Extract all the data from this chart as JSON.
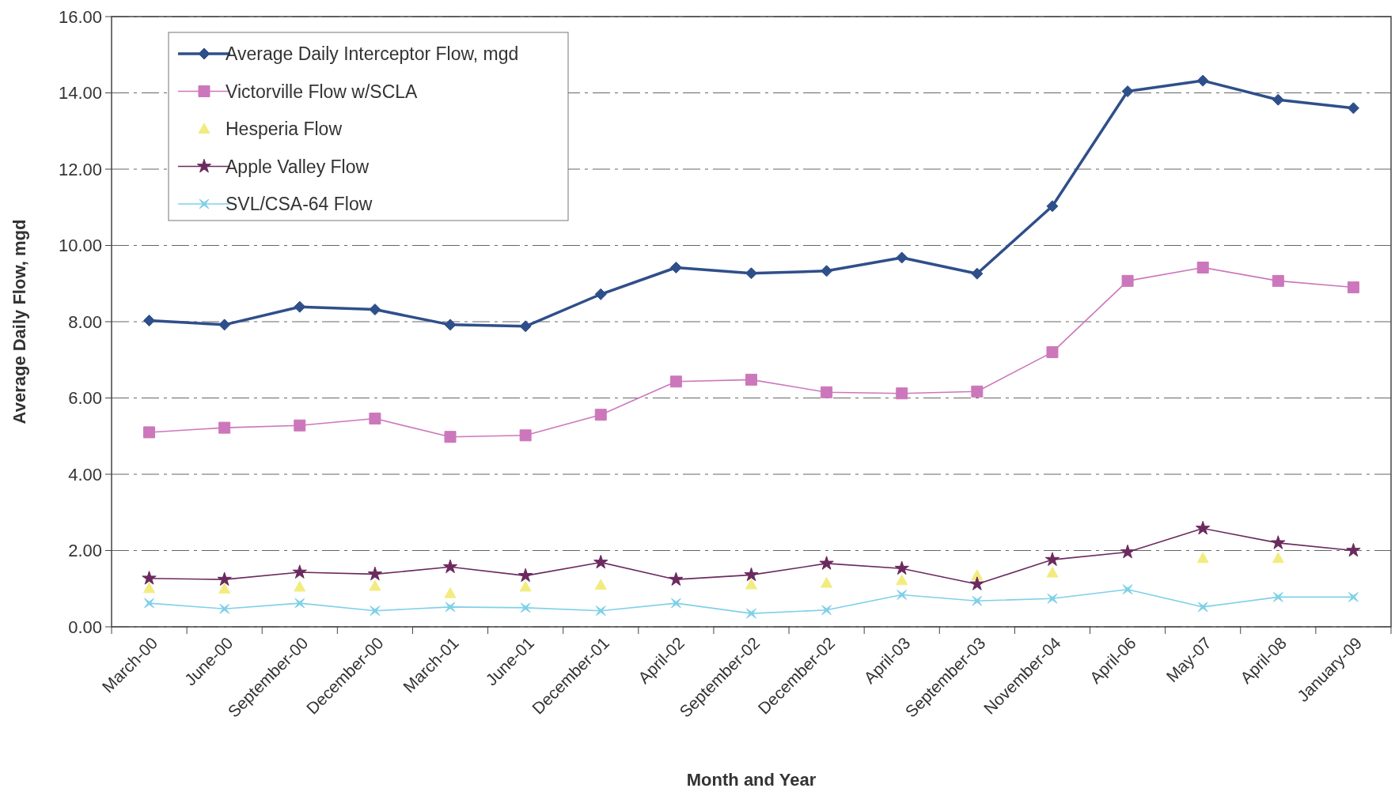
{
  "chart_data": {
    "type": "line",
    "xlabel": "Month and Year",
    "ylabel": "Average Daily Flow, mgd",
    "categories": [
      "March-00",
      "June-00",
      "September-00",
      "December-00",
      "March-01",
      "June-01",
      "December-01",
      "April-02",
      "September-02",
      "December-02",
      "April-03",
      "September-03",
      "November-04",
      "April-06",
      "May-07",
      "April-08",
      "January-09"
    ],
    "ylim": [
      0,
      16
    ],
    "yticks": [
      {
        "value": 0,
        "label": "0.00"
      },
      {
        "value": 2,
        "label": "2.00"
      },
      {
        "value": 4,
        "label": "4.00"
      },
      {
        "value": 6,
        "label": "6.00"
      },
      {
        "value": 8,
        "label": "8.00"
      },
      {
        "value": 10,
        "label": "10.00"
      },
      {
        "value": 12,
        "label": "12.00"
      },
      {
        "value": 14,
        "label": "14.00"
      },
      {
        "value": 16,
        "label": "16.00"
      }
    ],
    "grid": "y",
    "legend": "top left",
    "series": [
      {
        "name": "Average Daily Interceptor Flow, mgd",
        "color": "#2f4f8a",
        "marker": "diamond",
        "values": [
          8.03,
          7.92,
          8.39,
          8.32,
          7.92,
          7.88,
          8.72,
          9.42,
          9.27,
          9.33,
          9.68,
          9.26,
          11.03,
          14.04,
          14.32,
          13.82,
          13.6
        ]
      },
      {
        "name": "Victorville Flow w/SCLA",
        "color": "#cc77bb",
        "marker": "square",
        "values": [
          5.1,
          5.22,
          5.28,
          5.46,
          4.98,
          5.02,
          5.56,
          6.43,
          6.48,
          6.15,
          6.12,
          6.17,
          7.2,
          9.07,
          9.42,
          9.07,
          8.9
        ]
      },
      {
        "name": "Hesperia Flow",
        "type": "scatter",
        "color": "#f2ec80",
        "marker": "triangle",
        "values": [
          1.01,
          1.0,
          1.05,
          1.07,
          0.88,
          1.05,
          1.1,
          null,
          1.11,
          1.15,
          1.22,
          1.35,
          1.42,
          null,
          1.8,
          1.8,
          null
        ]
      },
      {
        "name": "Apple Valley Flow",
        "color": "#6b2a5e",
        "marker": "star",
        "values": [
          1.27,
          1.24,
          1.43,
          1.38,
          1.57,
          1.34,
          1.69,
          1.24,
          1.36,
          1.66,
          1.53,
          1.12,
          1.76,
          1.96,
          2.58,
          2.2,
          2.0
        ]
      },
      {
        "name": "SVL/CSA-64 Flow",
        "color": "#7fd0e8",
        "marker": "cross",
        "values": [
          0.62,
          0.47,
          0.62,
          0.42,
          0.52,
          0.5,
          0.42,
          0.62,
          0.35,
          0.44,
          0.84,
          0.68,
          0.74,
          0.98,
          0.52,
          0.78,
          0.78
        ]
      }
    ]
  }
}
